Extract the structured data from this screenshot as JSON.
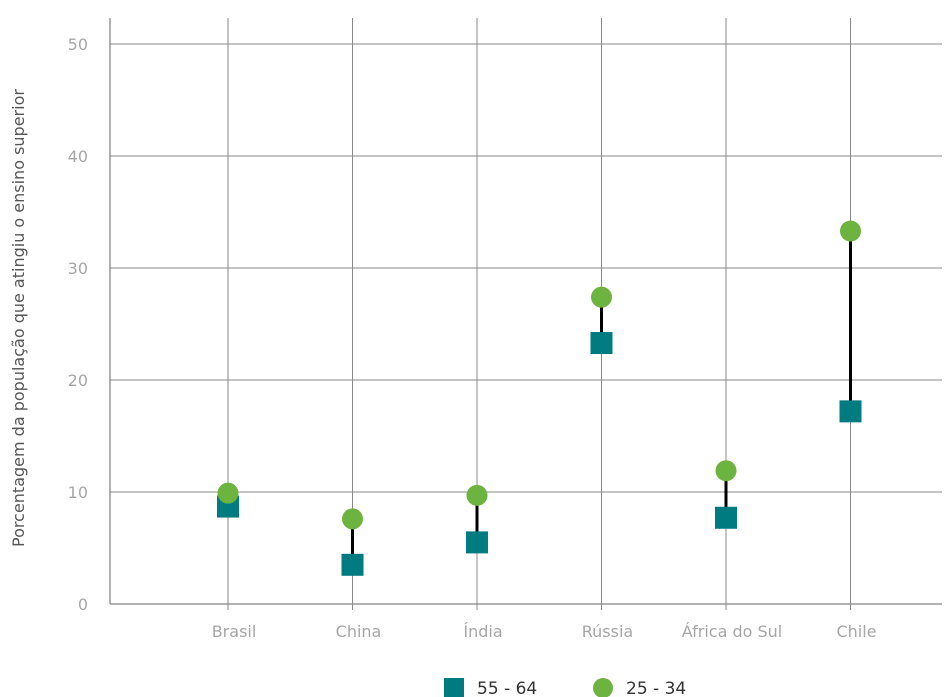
{
  "chart_data": {
    "type": "scatter",
    "ylabel": "Porcentagem da população que atingiu o ensino superior",
    "ylim": [
      0,
      52
    ],
    "yticks": [
      "0",
      "10",
      "20",
      "30",
      "40",
      "50"
    ],
    "grid": true,
    "legend_position": "bottom",
    "categories": [
      "Brasil",
      "China",
      "Índia",
      "Rússia",
      "África do Sul",
      "Chile"
    ],
    "series": [
      {
        "name": "55 - 64",
        "marker": "square",
        "color": "#007b80",
        "values": [
          8.7,
          3.5,
          5.5,
          23.3,
          7.7,
          17.2
        ]
      },
      {
        "name": "25 - 34",
        "marker": "circle",
        "color": "#6db33f",
        "values": [
          9.9,
          7.6,
          9.7,
          27.4,
          11.9,
          33.3
        ]
      }
    ],
    "connector_color": "#000000"
  }
}
